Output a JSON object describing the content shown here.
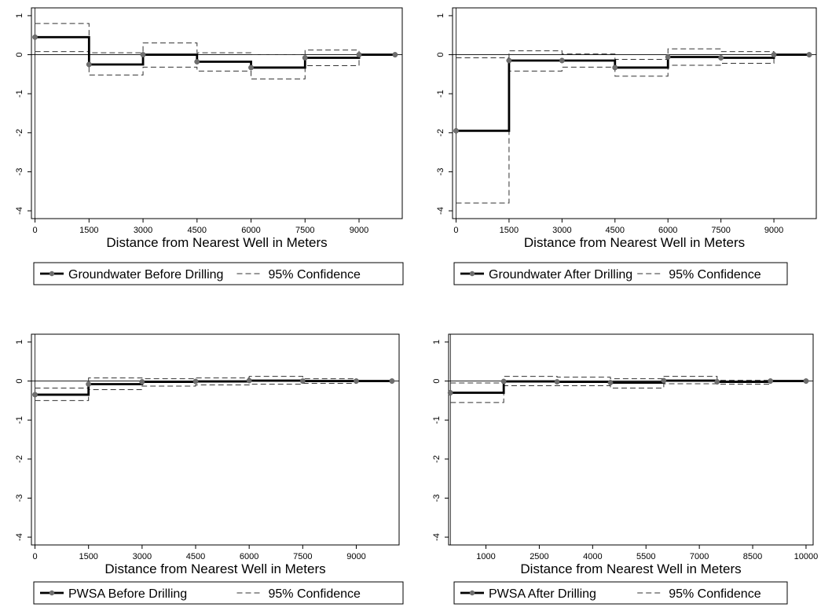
{
  "chart_data": [
    {
      "type": "line",
      "xlabel": "Distance from Nearest Well in Meters",
      "ylabel": "",
      "xlim": [
        -100,
        10200
      ],
      "ylim": [
        -4.2,
        1.2
      ],
      "xticks": [
        0,
        1500,
        3000,
        4500,
        6000,
        7500,
        9000
      ],
      "xtick_labels": [
        "0",
        "1500",
        "3000",
        "4500",
        "6000",
        "7500",
        "9000"
      ],
      "yticks": [
        1,
        0,
        -1,
        -2,
        -3,
        -4
      ],
      "ytick_labels": [
        "1",
        "0",
        "-1",
        "-2",
        "-3",
        "-4"
      ],
      "grid": false,
      "legend_position": "bottom",
      "x": [
        0,
        1500,
        3000,
        4500,
        6000,
        7500,
        9000,
        10000
      ],
      "series": [
        {
          "name": "Groundwater Before Drilling",
          "style": "step",
          "values": [
            0.45,
            -0.25,
            0.0,
            -0.18,
            -0.33,
            -0.08,
            0.0,
            0.0
          ]
        },
        {
          "name": "95% Confidence",
          "style": "dashed-step",
          "upper": [
            0.8,
            0.05,
            0.3,
            0.05,
            0.0,
            0.12,
            0.0,
            0.0
          ],
          "lower": [
            0.08,
            -0.52,
            -0.32,
            -0.42,
            -0.62,
            -0.28,
            0.0,
            0.0
          ]
        }
      ]
    },
    {
      "type": "line",
      "xlabel": "Distance from Nearest Well in Meters",
      "ylabel": "",
      "xlim": [
        -100,
        10200
      ],
      "ylim": [
        -4.2,
        1.2
      ],
      "xticks": [
        0,
        1500,
        3000,
        4500,
        6000,
        7500,
        9000
      ],
      "xtick_labels": [
        "0",
        "1500",
        "3000",
        "4500",
        "6000",
        "7500",
        "9000"
      ],
      "yticks": [
        1,
        0,
        -1,
        -2,
        -3,
        -4
      ],
      "ytick_labels": [
        "1",
        "0",
        "-1",
        "-2",
        "-3",
        "-4"
      ],
      "grid": false,
      "legend_position": "bottom",
      "x": [
        0,
        1500,
        3000,
        4500,
        6000,
        7500,
        9000,
        10000
      ],
      "series": [
        {
          "name": "Groundwater After Drilling",
          "style": "step",
          "values": [
            -1.95,
            -0.15,
            -0.15,
            -0.33,
            -0.06,
            -0.08,
            0.0,
            0.0
          ]
        },
        {
          "name": "95% Confidence",
          "style": "dashed-step",
          "upper": [
            -0.08,
            0.1,
            0.02,
            -0.12,
            0.15,
            0.08,
            0.0,
            0.0
          ],
          "lower": [
            -3.8,
            -0.42,
            -0.32,
            -0.55,
            -0.27,
            -0.22,
            0.0,
            0.0
          ]
        }
      ]
    },
    {
      "type": "line",
      "xlabel": "Distance from Nearest Well in Meters",
      "ylabel": "",
      "xlim": [
        -100,
        10200
      ],
      "ylim": [
        -4.2,
        1.2
      ],
      "xticks": [
        0,
        1500,
        3000,
        4500,
        6000,
        7500,
        9000
      ],
      "xtick_labels": [
        "0",
        "1500",
        "3000",
        "4500",
        "6000",
        "7500",
        "9000"
      ],
      "yticks": [
        1,
        0,
        -1,
        -2,
        -3,
        -4
      ],
      "ytick_labels": [
        "1",
        "0",
        "-1",
        "-2",
        "-3",
        "-4"
      ],
      "grid": false,
      "legend_position": "bottom",
      "x": [
        0,
        1500,
        3000,
        4500,
        6000,
        7500,
        9000,
        10000
      ],
      "series": [
        {
          "name": "PWSA Before Drilling",
          "style": "step",
          "values": [
            -0.35,
            -0.08,
            -0.02,
            -0.01,
            0.01,
            0.0,
            0.0,
            0.0
          ]
        },
        {
          "name": "95% Confidence",
          "style": "dashed-step",
          "upper": [
            -0.18,
            0.08,
            0.06,
            0.08,
            0.12,
            0.06,
            0.0,
            0.0
          ],
          "lower": [
            -0.5,
            -0.22,
            -0.13,
            -0.1,
            -0.08,
            -0.06,
            0.0,
            0.0
          ]
        }
      ]
    },
    {
      "type": "line",
      "xlabel": "Distance from Nearest Well in Meters",
      "ylabel": "",
      "xlim": [
        -50,
        10200
      ],
      "ylim": [
        -4.2,
        1.2
      ],
      "xticks": [
        1000,
        2500,
        4000,
        5500,
        7000,
        8500,
        10000
      ],
      "xtick_labels": [
        "1000",
        "2500",
        "4000",
        "5500",
        "7000",
        "8500",
        "10000"
      ],
      "yticks": [
        1,
        0,
        -1,
        -2,
        -3,
        -4
      ],
      "ytick_labels": [
        "1",
        "0",
        "-1",
        "-2",
        "-3",
        "-4"
      ],
      "grid": false,
      "legend_position": "bottom",
      "x": [
        0,
        1500,
        3000,
        4500,
        6000,
        7500,
        9000,
        10000
      ],
      "series": [
        {
          "name": "PWSA After Drilling",
          "style": "step",
          "values": [
            -0.3,
            -0.01,
            -0.02,
            -0.04,
            0.01,
            -0.02,
            0.0,
            0.0
          ]
        },
        {
          "name": "95% Confidence",
          "style": "dashed-step",
          "upper": [
            -0.05,
            0.12,
            0.1,
            0.06,
            0.12,
            0.02,
            0.0,
            0.0
          ],
          "lower": [
            -0.55,
            -0.12,
            -0.12,
            -0.18,
            -0.07,
            -0.08,
            0.0,
            0.0
          ]
        }
      ]
    }
  ]
}
